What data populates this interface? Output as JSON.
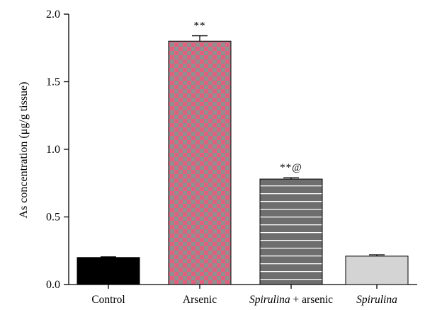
{
  "chart_data": {
    "type": "bar",
    "ylabel": "As concentration (μg/g tissue)",
    "ylim": [
      0,
      2.0
    ],
    "yticks": [
      0.0,
      0.5,
      1.0,
      1.5,
      2.0
    ],
    "ytick_labels": [
      "0.0",
      "0.5",
      "1.0",
      "1.5",
      "2.0"
    ],
    "categories": [
      "Control",
      "Arsenic",
      "Spirulina + arsenic",
      "Spirulina"
    ],
    "category_label_parts": [
      [
        {
          "text": "Control",
          "italic": false
        }
      ],
      [
        {
          "text": "Arsenic",
          "italic": false
        }
      ],
      [
        {
          "text": "Spirulina",
          "italic": true
        },
        {
          "text": " + arsenic",
          "italic": false
        }
      ],
      [
        {
          "text": "Spirulina",
          "italic": true
        }
      ]
    ],
    "values": [
      0.2,
      1.8,
      0.78,
      0.21
    ],
    "errors": [
      0.005,
      0.04,
      0.01,
      0.01
    ],
    "significance": [
      "",
      "**",
      "**@",
      ""
    ],
    "fills": [
      "solid-black",
      "checker-pink-gray",
      "horizontal-stripes-gray",
      "solid-lightgray"
    ],
    "colors": {
      "control": "#000000",
      "arsenic_a": "#e0607e",
      "arsenic_b": "#909090",
      "spirulina_arsenic": "#6e6e6e",
      "spirulina_arsenic_stripe": "#ffffff",
      "spirulina": "#d4d4d4"
    },
    "grid": false,
    "legend": "none"
  }
}
